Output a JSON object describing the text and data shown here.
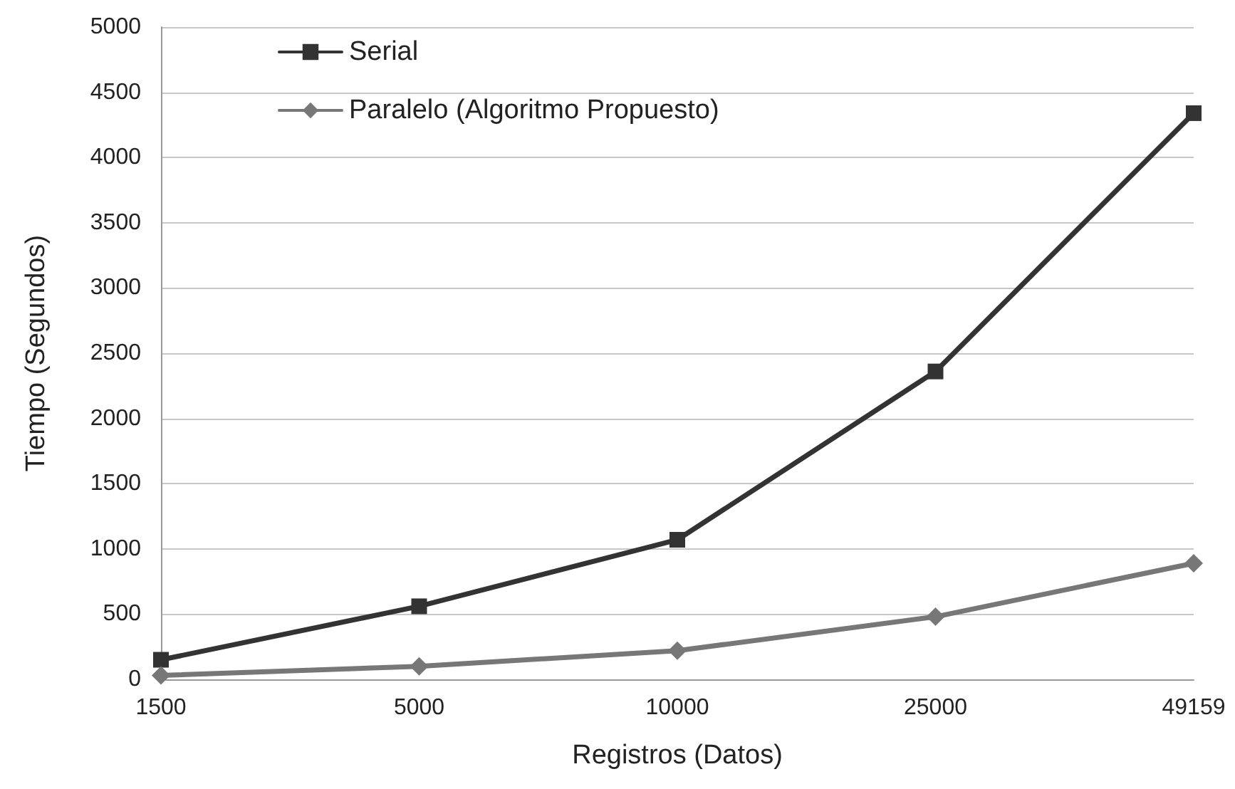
{
  "chart_data": {
    "type": "line",
    "xlabel": "Registros (Datos)",
    "ylabel": "Tiempo (Segundos)",
    "categories": [
      "1500",
      "5000",
      "10000",
      "25000",
      "49159"
    ],
    "series": [
      {
        "name": "Serial",
        "color": "#333333",
        "marker": "square",
        "values": [
          150,
          560,
          1070,
          2360,
          4340
        ]
      },
      {
        "name": "Paralelo (Algoritmo Propuesto)",
        "color": "#777777",
        "marker": "diamond",
        "values": [
          30,
          100,
          220,
          480,
          890
        ]
      }
    ],
    "ylim": [
      0,
      5000
    ],
    "yticks": [
      0,
      500,
      1000,
      1500,
      2000,
      2500,
      3000,
      3500,
      4000,
      4500,
      5000
    ],
    "grid": "y",
    "legend": "top left",
    "line_style": "solid"
  }
}
